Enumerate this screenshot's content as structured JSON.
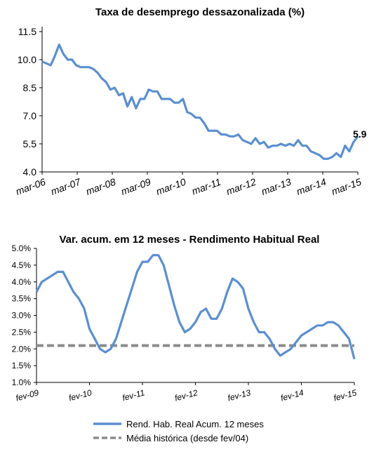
{
  "chart_data": [
    {
      "type": "line",
      "title": "Taxa de desemprego dessazonalizada (%)",
      "xlabel": "",
      "ylabel": "",
      "ylim": [
        4.0,
        11.5
      ],
      "yticks": [
        "11.5",
        "10.0",
        "8.5",
        "7.0",
        "5.5",
        "4.0"
      ],
      "xticks": [
        "mar-06",
        "mar-07",
        "mar-08",
        "mar-09",
        "mar-10",
        "mar-11",
        "mar-12",
        "mar-13",
        "mar-14",
        "mar-15"
      ],
      "end_label": "5.9",
      "color": "#5b8fd0",
      "grid": false,
      "series": [
        {
          "values": [
            9.9,
            9.8,
            9.7,
            10.2,
            10.8,
            10.3,
            10.0,
            10.0,
            9.7,
            9.6,
            9.6,
            9.6,
            9.5,
            9.3,
            9.0,
            8.8,
            8.4,
            8.5,
            8.1,
            8.2,
            7.5,
            8.0,
            7.4,
            7.9,
            7.9,
            8.4,
            8.3,
            8.3,
            7.9,
            7.9,
            7.9,
            7.7,
            7.7,
            7.9,
            7.2,
            7.1,
            6.9,
            6.9,
            6.6,
            6.2,
            6.2,
            6.2,
            6.0,
            6.0,
            5.9,
            5.9,
            6.0,
            5.7,
            5.6,
            5.5,
            5.8,
            5.5,
            5.6,
            5.3,
            5.4,
            5.4,
            5.5,
            5.4,
            5.5,
            5.4,
            5.7,
            5.4,
            5.4,
            5.1,
            5.0,
            4.9,
            4.7,
            4.7,
            4.8,
            5.0,
            4.8,
            5.4,
            5.1,
            5.6,
            5.9
          ]
        }
      ]
    },
    {
      "type": "line",
      "title": "Var. acum. em 12 meses - Rendimento Habitual Real",
      "xlabel": "",
      "ylabel": "",
      "ylim": [
        1.0,
        5.0
      ],
      "yticks": [
        "5.0%",
        "4.5%",
        "4.0%",
        "3.5%",
        "3.0%",
        "2.5%",
        "2.0%",
        "1.5%",
        "1.0%"
      ],
      "xticks": [
        "fev-09",
        "fev-10",
        "fev-11",
        "fev-12",
        "fev-13",
        "fev-14",
        "fev-15"
      ],
      "legend_position": "bottom",
      "grid": false,
      "series": [
        {
          "name": "Rend. Hab. Real Acum. 12 meses",
          "color": "#5b8fd0",
          "values": [
            3.7,
            4.0,
            4.1,
            4.2,
            4.3,
            4.3,
            4.0,
            3.7,
            3.5,
            3.2,
            2.6,
            2.3,
            2.0,
            1.9,
            2.0,
            2.3,
            2.8,
            3.3,
            3.8,
            4.3,
            4.6,
            4.6,
            4.8,
            4.8,
            4.5,
            3.9,
            3.3,
            2.8,
            2.5,
            2.6,
            2.8,
            3.1,
            3.2,
            2.9,
            2.9,
            3.2,
            3.7,
            4.1,
            4.0,
            3.8,
            3.2,
            2.8,
            2.5,
            2.5,
            2.3,
            2.0,
            1.8,
            1.9,
            2.0,
            2.2,
            2.4,
            2.5,
            2.6,
            2.7,
            2.7,
            2.8,
            2.8,
            2.7,
            2.5,
            2.3,
            1.7
          ]
        },
        {
          "name": "Média histórica (desde fev/04)",
          "color": "#8c8c8c",
          "dashed": true,
          "values": [
            2.1,
            2.1
          ]
        }
      ]
    }
  ]
}
